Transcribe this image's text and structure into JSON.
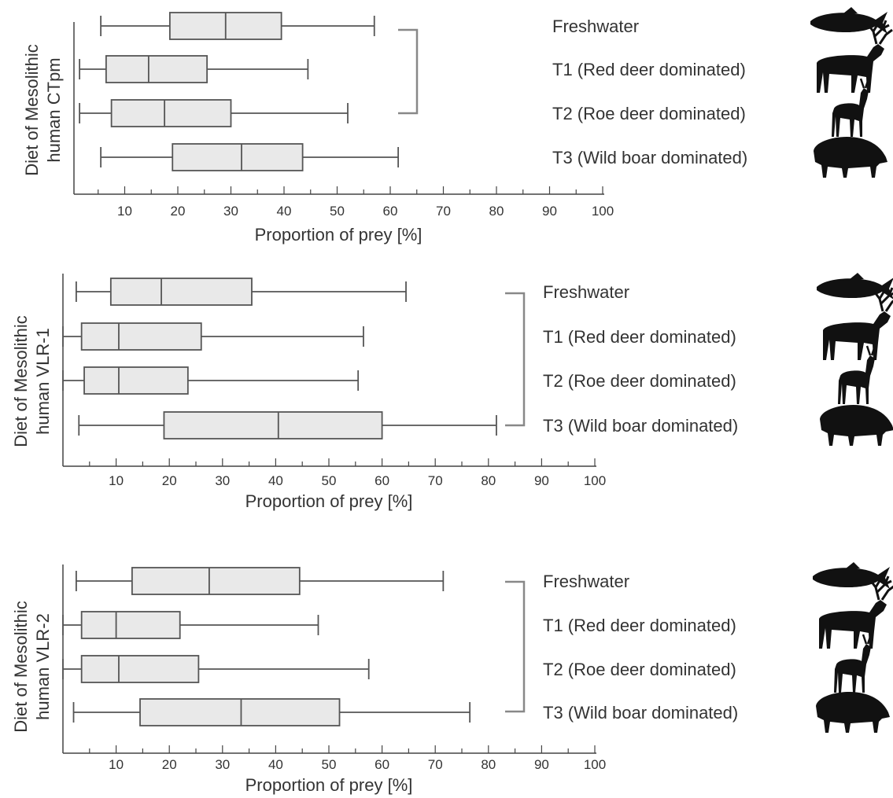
{
  "chart_data": [
    {
      "type": "boxplot",
      "ylabel": [
        "Diet of Mesolithic",
        "human CTpm"
      ],
      "xlabel": "Proportion of prey [%]",
      "xlim": [
        0,
        100
      ],
      "xticks": [
        10,
        20,
        30,
        40,
        50,
        60,
        70,
        80,
        90,
        100
      ],
      "bracket": true,
      "categories": [
        {
          "name": "Freshwater",
          "icon": "fish-icon",
          "whisker_low": 5.5,
          "q1": 18.5,
          "median": 29,
          "q3": 39.5,
          "whisker_high": 57
        },
        {
          "name": "T1 (Red deer dominated)",
          "icon": "red-deer-icon",
          "whisker_low": 1.5,
          "q1": 6.5,
          "median": 14.5,
          "q3": 25.5,
          "whisker_high": 44.5
        },
        {
          "name": "T2 (Roe deer dominated)",
          "icon": "roe-deer-icon",
          "whisker_low": 1.5,
          "q1": 7.5,
          "median": 17.5,
          "q3": 30,
          "whisker_high": 52
        },
        {
          "name": "T3 (Wild boar dominated)",
          "icon": "wild-boar-icon",
          "whisker_low": 5.5,
          "q1": 19,
          "median": 32,
          "q3": 43.5,
          "whisker_high": 61.5
        }
      ]
    },
    {
      "type": "boxplot",
      "ylabel": [
        "Diet of Mesolithic",
        "human VLR-1"
      ],
      "xlabel": "Proportion of prey [%]",
      "xlim": [
        0,
        100
      ],
      "xticks": [
        10,
        20,
        30,
        40,
        50,
        60,
        70,
        80,
        90,
        100
      ],
      "bracket": true,
      "categories": [
        {
          "name": "Freshwater",
          "icon": "fish-icon",
          "whisker_low": 2.5,
          "q1": 9,
          "median": 18.5,
          "q3": 35.5,
          "whisker_high": 64.5
        },
        {
          "name": "T1 (Red deer dominated)",
          "icon": "red-deer-icon",
          "whisker_low": 0,
          "q1": 3.5,
          "median": 10.5,
          "q3": 26,
          "whisker_high": 56.5
        },
        {
          "name": "T2 (Roe deer dominated)",
          "icon": "roe-deer-icon",
          "whisker_low": 0,
          "q1": 4,
          "median": 10.5,
          "q3": 23.5,
          "whisker_high": 55.5
        },
        {
          "name": "T3 (Wild boar dominated)",
          "icon": "wild-boar-icon",
          "whisker_low": 3,
          "q1": 19,
          "median": 40.5,
          "q3": 60,
          "whisker_high": 81.5
        }
      ]
    },
    {
      "type": "boxplot",
      "ylabel": [
        "Diet of Mesolithic",
        "human VLR-2"
      ],
      "xlabel": "Proportion of prey [%]",
      "xlim": [
        0,
        100
      ],
      "xticks": [
        10,
        20,
        30,
        40,
        50,
        60,
        70,
        80,
        90,
        100
      ],
      "bracket": true,
      "categories": [
        {
          "name": "Freshwater",
          "icon": "fish-icon",
          "whisker_low": 2.5,
          "q1": 13,
          "median": 27.5,
          "q3": 44.5,
          "whisker_high": 71.5
        },
        {
          "name": "T1 (Red deer dominated)",
          "icon": "red-deer-icon",
          "whisker_low": 0,
          "q1": 3.5,
          "median": 10,
          "q3": 22,
          "whisker_high": 48
        },
        {
          "name": "T2 (Roe deer dominated)",
          "icon": "roe-deer-icon",
          "whisker_low": 0,
          "q1": 3.5,
          "median": 10.5,
          "q3": 25.5,
          "whisker_high": 57.5
        },
        {
          "name": "T3 (Wild boar dominated)",
          "icon": "wild-boar-icon",
          "whisker_low": 2,
          "q1": 14.5,
          "median": 33.5,
          "q3": 52,
          "whisker_high": 76.5
        }
      ]
    }
  ]
}
